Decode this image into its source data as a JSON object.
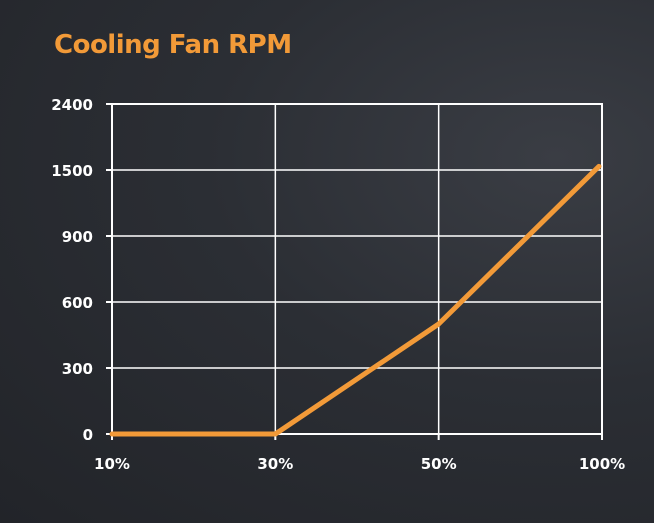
{
  "chart_data": {
    "type": "line",
    "title": "Cooling Fan RPM",
    "xlabel": "",
    "ylabel": "",
    "categories": [
      "10%",
      "30%",
      "50%",
      "100%"
    ],
    "y_ticks": [
      "0",
      "300",
      "600",
      "900",
      "1500",
      "2400"
    ],
    "series": [
      {
        "values": [
          0,
          0,
          500,
          1550
        ]
      }
    ],
    "grid": true,
    "colors": {
      "line": "#f29a38",
      "title": "#f29a38",
      "grid": "#ffffff",
      "text": "#ffffff"
    }
  }
}
